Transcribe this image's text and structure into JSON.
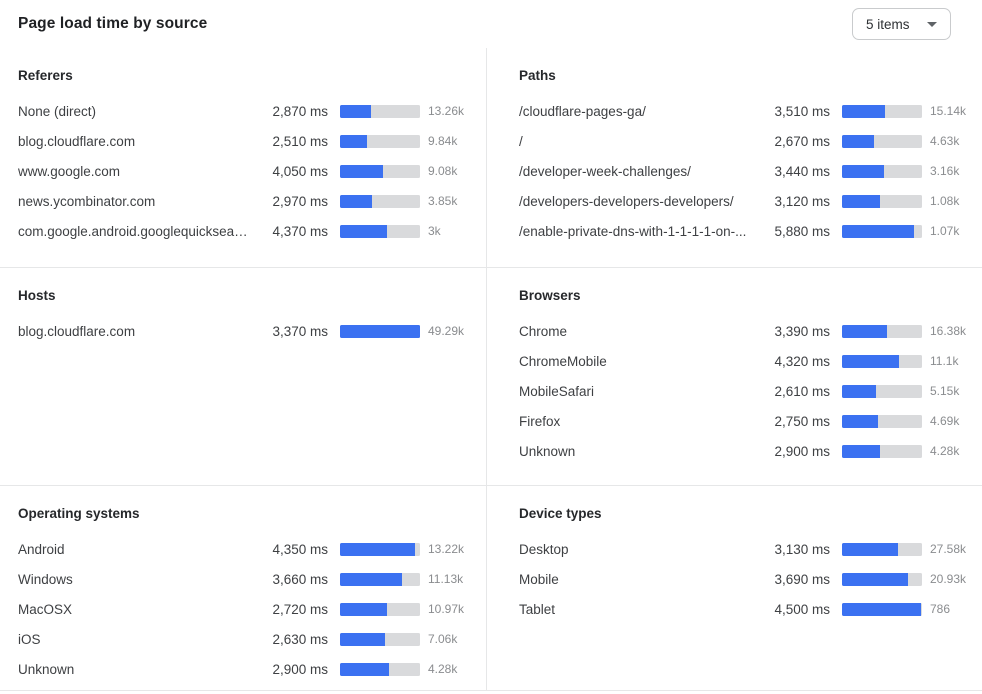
{
  "header": {
    "title": "Page load time by source",
    "items_dropdown_label": "5 items"
  },
  "colors": {
    "bar_fill": "#3b71f1",
    "bar_track": "#d9dadc",
    "divider": "#e6e7e8",
    "count_text": "#8a8c8f"
  },
  "panels": {
    "referers": {
      "title": "Referers",
      "rows": [
        {
          "label": "None (direct)",
          "ms": "2,870 ms",
          "count": "13.26k",
          "bar_pct": 39
        },
        {
          "label": "blog.cloudflare.com",
          "ms": "2,510 ms",
          "count": "9.84k",
          "bar_pct": 34
        },
        {
          "label": "www.google.com",
          "ms": "4,050 ms",
          "count": "9.08k",
          "bar_pct": 54
        },
        {
          "label": "news.ycombinator.com",
          "ms": "2,970 ms",
          "count": "3.85k",
          "bar_pct": 40
        },
        {
          "label": "com.google.android.googlequicksearc...",
          "ms": "4,370 ms",
          "count": "3k",
          "bar_pct": 59
        }
      ]
    },
    "paths": {
      "title": "Paths",
      "rows": [
        {
          "label": "/cloudflare-pages-ga/",
          "ms": "3,510 ms",
          "count": "15.14k",
          "bar_pct": 54
        },
        {
          "label": "/",
          "ms": "2,670 ms",
          "count": "4.63k",
          "bar_pct": 40
        },
        {
          "label": "/developer-week-challenges/",
          "ms": "3,440 ms",
          "count": "3.16k",
          "bar_pct": 53
        },
        {
          "label": "/developers-developers-developers/",
          "ms": "3,120 ms",
          "count": "1.08k",
          "bar_pct": 48
        },
        {
          "label": "/enable-private-dns-with-1-1-1-1-on-...",
          "ms": "5,880 ms",
          "count": "1.07k",
          "bar_pct": 90
        }
      ]
    },
    "hosts": {
      "title": "Hosts",
      "rows": [
        {
          "label": "blog.cloudflare.com",
          "ms": "3,370 ms",
          "count": "49.29k",
          "bar_pct": 100
        }
      ]
    },
    "browsers": {
      "title": "Browsers",
      "rows": [
        {
          "label": "Chrome",
          "ms": "3,390 ms",
          "count": "16.38k",
          "bar_pct": 56
        },
        {
          "label": "ChromeMobile",
          "ms": "4,320 ms",
          "count": "11.1k",
          "bar_pct": 71
        },
        {
          "label": "MobileSafari",
          "ms": "2,610 ms",
          "count": "5.15k",
          "bar_pct": 42
        },
        {
          "label": "Firefox",
          "ms": "2,750 ms",
          "count": "4.69k",
          "bar_pct": 45
        },
        {
          "label": "Unknown",
          "ms": "2,900 ms",
          "count": "4.28k",
          "bar_pct": 48
        }
      ]
    },
    "operating_systems": {
      "title": "Operating systems",
      "rows": [
        {
          "label": "Android",
          "ms": "4,350 ms",
          "count": "13.22k",
          "bar_pct": 94
        },
        {
          "label": "Windows",
          "ms": "3,660 ms",
          "count": "11.13k",
          "bar_pct": 78
        },
        {
          "label": "MacOSX",
          "ms": "2,720 ms",
          "count": "10.97k",
          "bar_pct": 59
        },
        {
          "label": "iOS",
          "ms": "2,630 ms",
          "count": "7.06k",
          "bar_pct": 56
        },
        {
          "label": "Unknown",
          "ms": "2,900 ms",
          "count": "4.28k",
          "bar_pct": 61
        }
      ]
    },
    "device_types": {
      "title": "Device types",
      "rows": [
        {
          "label": "Desktop",
          "ms": "3,130 ms",
          "count": "27.58k",
          "bar_pct": 70
        },
        {
          "label": "Mobile",
          "ms": "3,690 ms",
          "count": "20.93k",
          "bar_pct": 83
        },
        {
          "label": "Tablet",
          "ms": "4,500 ms",
          "count": "786",
          "bar_pct": 99
        }
      ]
    }
  }
}
